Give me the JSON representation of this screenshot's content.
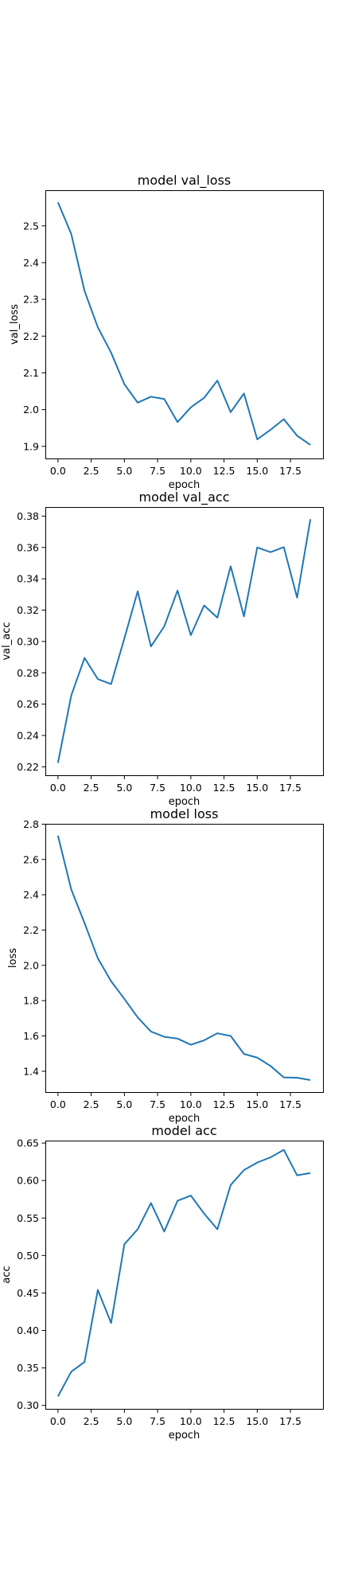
{
  "figure": {
    "background": "#ffffff"
  },
  "chart_data": [
    {
      "type": "line",
      "title": "model val_loss",
      "xlabel": "epoch",
      "ylabel": "val_loss",
      "x": [
        0,
        1,
        2,
        3,
        4,
        5,
        6,
        7,
        8,
        9,
        10,
        11,
        12,
        13,
        14,
        15,
        16,
        17,
        18,
        19
      ],
      "xlim": [
        -0.95,
        19.95
      ],
      "ylim": [
        1.867,
        2.597
      ],
      "xticks": [
        0,
        2.5,
        5,
        7.5,
        10,
        12.5,
        15,
        17.5
      ],
      "xtick_labels": [
        "0.0",
        "2.5",
        "5.0",
        "7.5",
        "10.0",
        "12.5",
        "15.0",
        "17.5"
      ],
      "yticks": [
        1.9,
        2.0,
        2.1,
        2.2,
        2.3,
        2.4,
        2.5
      ],
      "ytick_labels": [
        "1.9",
        "2.0",
        "2.1",
        "2.2",
        "2.3",
        "2.4",
        "2.5"
      ],
      "grid": false,
      "series": [
        {
          "color": "#1f77b4",
          "values": [
            2.564,
            2.478,
            2.323,
            2.224,
            2.155,
            2.069,
            2.019,
            2.035,
            2.029,
            1.966,
            2.006,
            2.032,
            2.079,
            1.993,
            2.044,
            1.919,
            1.945,
            1.974,
            1.929,
            1.904
          ]
        }
      ]
    },
    {
      "type": "line",
      "title": "model val_acc",
      "xlabel": "epoch",
      "ylabel": "val_acc",
      "x": [
        0,
        1,
        2,
        3,
        4,
        5,
        6,
        7,
        8,
        9,
        10,
        11,
        12,
        13,
        14,
        15,
        16,
        17,
        18,
        19
      ],
      "xlim": [
        -0.95,
        19.95
      ],
      "ylim": [
        0.2146,
        0.3858
      ],
      "xticks": [
        0,
        2.5,
        5,
        7.5,
        10,
        12.5,
        15,
        17.5
      ],
      "xtick_labels": [
        "0.0",
        "2.5",
        "5.0",
        "7.5",
        "10.0",
        "12.5",
        "15.0",
        "17.5"
      ],
      "yticks": [
        0.22,
        0.24,
        0.26,
        0.28,
        0.3,
        0.32,
        0.34,
        0.36,
        0.38
      ],
      "ytick_labels": [
        "0.22",
        "0.24",
        "0.26",
        "0.28",
        "0.30",
        "0.32",
        "0.34",
        "0.36",
        "0.38"
      ],
      "grid": false,
      "series": [
        {
          "color": "#1f77b4",
          "values": [
            0.2225,
            0.2655,
            0.2895,
            0.276,
            0.2728,
            0.302,
            0.332,
            0.2968,
            0.3096,
            0.3325,
            0.304,
            0.323,
            0.3152,
            0.348,
            0.316,
            0.36,
            0.357,
            0.3602,
            0.328,
            0.378
          ]
        }
      ]
    },
    {
      "type": "line",
      "title": "model loss",
      "xlabel": "epoch",
      "ylabel": "loss",
      "x": [
        0,
        1,
        2,
        3,
        4,
        5,
        6,
        7,
        8,
        9,
        10,
        11,
        12,
        13,
        14,
        15,
        16,
        17,
        18,
        19
      ],
      "xlim": [
        -0.95,
        19.95
      ],
      "ylim": [
        1.282,
        2.802
      ],
      "xticks": [
        0,
        2.5,
        5,
        7.5,
        10,
        12.5,
        15,
        17.5
      ],
      "xtick_labels": [
        "0.0",
        "2.5",
        "5.0",
        "7.5",
        "10.0",
        "12.5",
        "15.0",
        "17.5"
      ],
      "yticks": [
        1.4,
        1.6,
        1.8,
        2.0,
        2.2,
        2.4,
        2.6,
        2.8
      ],
      "ytick_labels": [
        "1.4",
        "1.6",
        "1.8",
        "2.0",
        "2.2",
        "2.4",
        "2.6",
        "2.8"
      ],
      "grid": false,
      "series": [
        {
          "color": "#1f77b4",
          "values": [
            2.735,
            2.43,
            2.24,
            2.04,
            1.91,
            1.81,
            1.705,
            1.625,
            1.595,
            1.585,
            1.55,
            1.575,
            1.615,
            1.6,
            1.498,
            1.477,
            1.43,
            1.365,
            1.363,
            1.35
          ]
        }
      ]
    },
    {
      "type": "line",
      "title": "model acc",
      "xlabel": "epoch",
      "ylabel": "acc",
      "x": [
        0,
        1,
        2,
        3,
        4,
        5,
        6,
        7,
        8,
        9,
        10,
        11,
        12,
        13,
        14,
        15,
        16,
        17,
        18,
        19
      ],
      "xlim": [
        -0.95,
        19.95
      ],
      "ylim": [
        0.2954,
        0.6533
      ],
      "xticks": [
        0,
        2.5,
        5,
        7.5,
        10,
        12.5,
        15,
        17.5
      ],
      "xtick_labels": [
        "0.0",
        "2.5",
        "5.0",
        "7.5",
        "10.0",
        "12.5",
        "15.0",
        "17.5"
      ],
      "yticks": [
        0.3,
        0.35,
        0.4,
        0.45,
        0.5,
        0.55,
        0.6,
        0.65
      ],
      "ytick_labels": [
        "0.30",
        "0.35",
        "0.40",
        "0.45",
        "0.50",
        "0.55",
        "0.60",
        "0.65"
      ],
      "grid": false,
      "series": [
        {
          "color": "#1f77b4",
          "values": [
            0.312,
            0.345,
            0.358,
            0.454,
            0.41,
            0.515,
            0.535,
            0.57,
            0.532,
            0.573,
            0.58,
            0.556,
            0.535,
            0.594,
            0.614,
            0.624,
            0.631,
            0.641,
            0.607,
            0.61
          ]
        }
      ]
    }
  ]
}
